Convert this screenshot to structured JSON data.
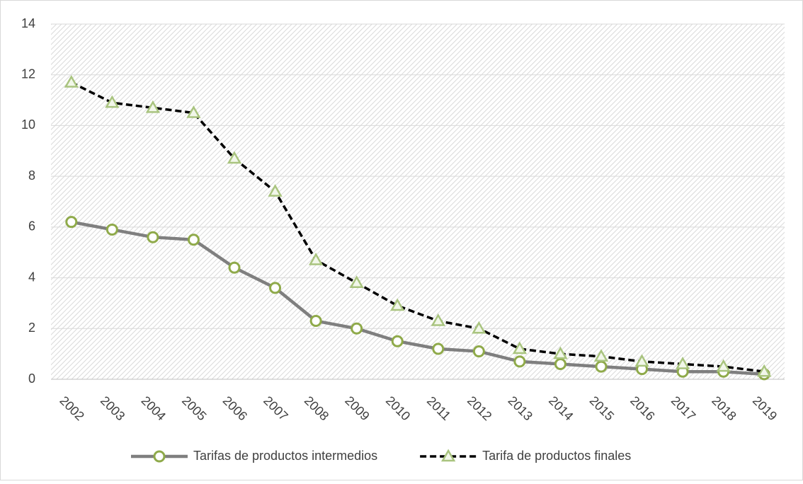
{
  "chart_data": {
    "type": "line",
    "categories": [
      "2002",
      "2003",
      "2004",
      "2005",
      "2006",
      "2007",
      "2008",
      "2009",
      "2010",
      "2011",
      "2012",
      "2013",
      "2014",
      "2015",
      "2016",
      "2017",
      "2018",
      "2019"
    ],
    "series": [
      {
        "name": "Tarifas de productos intermedios",
        "color": "#7f7f7f",
        "marker": "circle",
        "marker_color": "#8faa4a",
        "dash": false,
        "values": [
          6.2,
          5.9,
          5.6,
          5.5,
          4.4,
          3.6,
          2.3,
          2.0,
          1.5,
          1.2,
          1.1,
          0.7,
          0.6,
          0.5,
          0.4,
          0.3,
          0.3,
          0.2
        ]
      },
      {
        "name": "Tarifa de productos finales",
        "color": "#000000",
        "marker": "triangle",
        "marker_color": "#a9c47f",
        "dash": true,
        "values": [
          11.7,
          10.9,
          10.7,
          10.5,
          8.7,
          7.4,
          4.7,
          3.8,
          2.9,
          2.3,
          2.0,
          1.2,
          1.0,
          0.9,
          0.7,
          0.6,
          0.5,
          0.3
        ]
      }
    ],
    "ylim": [
      0,
      14
    ],
    "yticks": [
      0,
      2,
      4,
      6,
      8,
      10,
      12,
      14
    ],
    "grid": true,
    "legend": "bottom"
  }
}
